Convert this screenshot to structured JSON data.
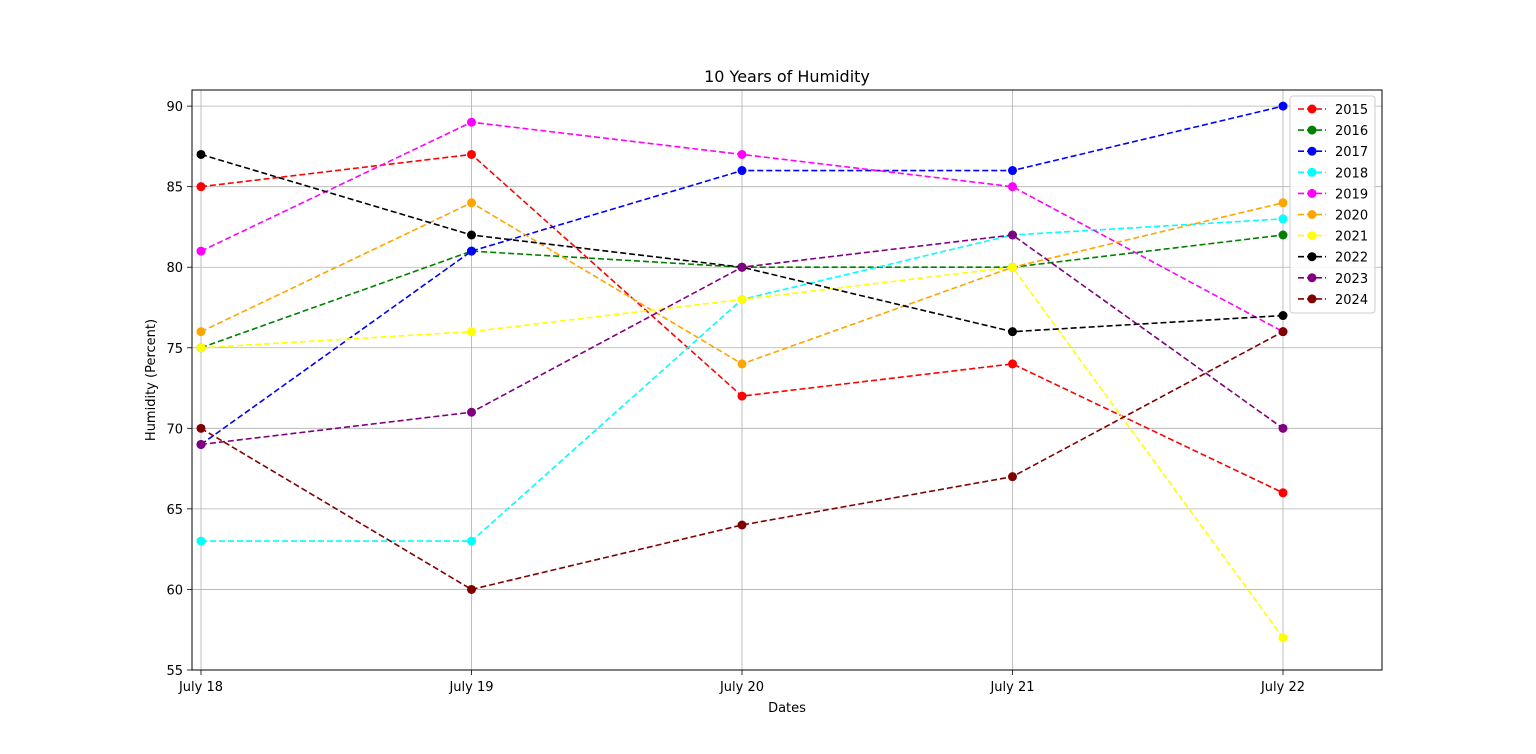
{
  "chart_data": {
    "type": "line",
    "title": "10 Years of Humidity",
    "xlabel": "Dates",
    "ylabel": "Humidity (Percent)",
    "categories": [
      "July 18",
      "July 19",
      "July 20",
      "July 21",
      "July 22"
    ],
    "ylim": [
      55,
      91
    ],
    "yticks": [
      55,
      60,
      65,
      70,
      75,
      80,
      85,
      90
    ],
    "grid": true,
    "legend_position": "top-right",
    "line_style": "dashed",
    "marker": "circle",
    "series": [
      {
        "name": "2015",
        "color": "#ff0000",
        "values": [
          85,
          87,
          72,
          74,
          66
        ]
      },
      {
        "name": "2016",
        "color": "#008000",
        "values": [
          75,
          81,
          80,
          80,
          82
        ]
      },
      {
        "name": "2017",
        "color": "#0000ff",
        "values": [
          69,
          81,
          86,
          86,
          90
        ]
      },
      {
        "name": "2018",
        "color": "#00ffff",
        "values": [
          63,
          63,
          78,
          82,
          83
        ]
      },
      {
        "name": "2019",
        "color": "#ff00ff",
        "values": [
          81,
          89,
          87,
          85,
          76
        ]
      },
      {
        "name": "2020",
        "color": "#ffa500",
        "values": [
          76,
          84,
          74,
          80,
          84
        ]
      },
      {
        "name": "2021",
        "color": "#ffff00",
        "values": [
          75,
          76,
          78,
          80,
          57
        ]
      },
      {
        "name": "2022",
        "color": "#000000",
        "values": [
          87,
          82,
          80,
          76,
          77
        ]
      },
      {
        "name": "2023",
        "color": "#800080",
        "values": [
          69,
          71,
          80,
          82,
          70
        ]
      },
      {
        "name": "2024",
        "color": "#800000",
        "values": [
          70,
          60,
          64,
          67,
          76
        ]
      }
    ]
  }
}
